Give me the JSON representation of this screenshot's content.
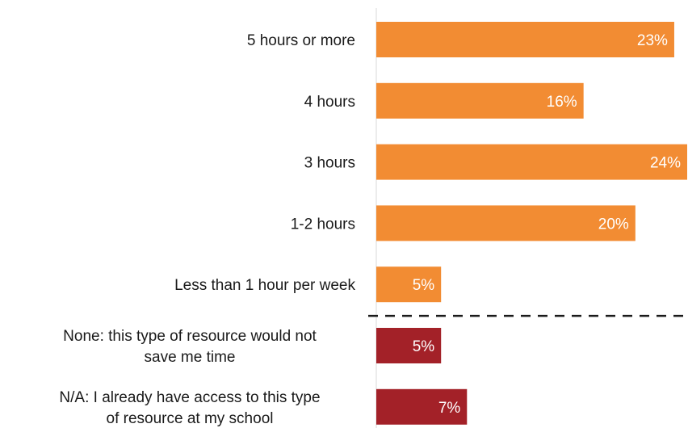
{
  "chart_data": {
    "type": "bar",
    "orientation": "horizontal",
    "categories": [
      [
        "5 hours or more"
      ],
      [
        "4 hours"
      ],
      [
        "3 hours"
      ],
      [
        "1-2 hours"
      ],
      [
        "Less than 1 hour per week"
      ],
      [
        "None: this type of resource would not",
        "save me time"
      ],
      [
        "N/A: I already have access to this type",
        "of resource at my school"
      ]
    ],
    "values": [
      23,
      16,
      24,
      20,
      5,
      5,
      7
    ],
    "value_labels": [
      "23%",
      "16%",
      "24%",
      "20%",
      "5%",
      "5%",
      "7%"
    ],
    "value_unit": "%",
    "bar_colors": [
      "#F28C33",
      "#F28C33",
      "#F28C33",
      "#F28C33",
      "#F28C33",
      "#A32128",
      "#A32128"
    ],
    "divider": {
      "style": "dashed",
      "after_index": 4
    },
    "xlim": [
      0,
      24
    ],
    "title": "",
    "xlabel": "",
    "ylabel": "",
    "grid": false,
    "legend": "none"
  }
}
